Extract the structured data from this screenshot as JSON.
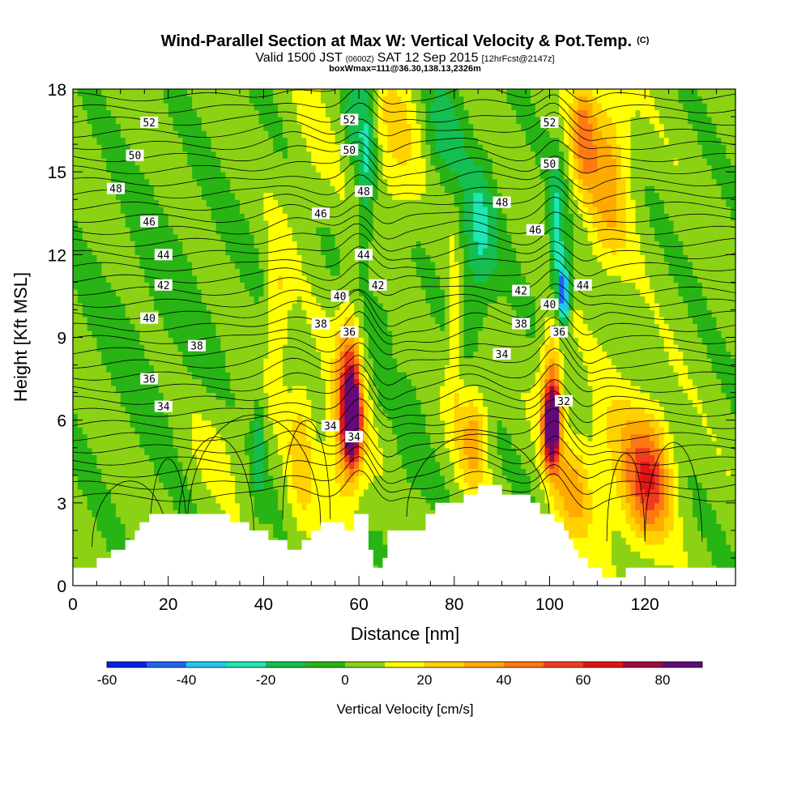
{
  "chart_data": {
    "type": "heatmap",
    "title": "Wind-Parallel Section at Max W: Vertical Velocity & Pot.Temp.",
    "title_mark": "(C)",
    "subtitle": {
      "valid": "Valid 1500 JST",
      "utc": "(0600Z)",
      "date": "SAT 12 Sep 2015",
      "forecast": "[12hrFcst@2147z]"
    },
    "annotation": "boxWmax=111@36.30,138.13,2326m",
    "xlabel": "Distance [nm]",
    "ylabel": "Height [Kft MSL]",
    "xlim": [
      0,
      139
    ],
    "ylim": [
      0,
      18
    ],
    "x_ticks": [
      0,
      20,
      40,
      60,
      80,
      100,
      120
    ],
    "y_ticks": [
      0,
      3,
      6,
      9,
      12,
      15,
      18
    ],
    "colorbar": {
      "label": "Vertical Velocity [cm/s]",
      "ticks": [
        -60,
        -40,
        -20,
        0,
        20,
        40,
        60,
        80
      ],
      "min": -60,
      "max": 90,
      "step": 10,
      "colors": [
        "#0a1ee6",
        "#1e64f0",
        "#1ec8f0",
        "#1ee6b4",
        "#14be50",
        "#28b414",
        "#8cd214",
        "#ffff00",
        "#ffd200",
        "#ffaa00",
        "#ff7814",
        "#f03c1e",
        "#e11414",
        "#a00a3c",
        "#640a78"
      ]
    },
    "terrain_nm_kft": [
      [
        0,
        0.65
      ],
      [
        5,
        0.65
      ],
      [
        5,
        1.0
      ],
      [
        8,
        1.0
      ],
      [
        8,
        1.3
      ],
      [
        11,
        1.3
      ],
      [
        11,
        1.65
      ],
      [
        13,
        1.65
      ],
      [
        13,
        2.0
      ],
      [
        14,
        2.0
      ],
      [
        14,
        2.3
      ],
      [
        16,
        2.3
      ],
      [
        16,
        2.6
      ],
      [
        33,
        2.6
      ],
      [
        33,
        2.3
      ],
      [
        37,
        2.3
      ],
      [
        37,
        2.0
      ],
      [
        41,
        2.0
      ],
      [
        41,
        1.65
      ],
      [
        45,
        1.65
      ],
      [
        45,
        1.3
      ],
      [
        48,
        1.3
      ],
      [
        48,
        1.65
      ],
      [
        50,
        1.65
      ],
      [
        50,
        2.0
      ],
      [
        52,
        2.0
      ],
      [
        52,
        2.3
      ],
      [
        57,
        2.3
      ],
      [
        57,
        2.0
      ],
      [
        59,
        2.0
      ],
      [
        59,
        2.6
      ],
      [
        62,
        2.6
      ],
      [
        62,
        1.3
      ],
      [
        63,
        1.3
      ],
      [
        63,
        0.65
      ],
      [
        65,
        0.65
      ],
      [
        65,
        1.0
      ],
      [
        66,
        1.0
      ],
      [
        66,
        2.0
      ],
      [
        74,
        2.0
      ],
      [
        74,
        2.6
      ],
      [
        76,
        2.6
      ],
      [
        76,
        3.0
      ],
      [
        82,
        3.0
      ],
      [
        82,
        3.3
      ],
      [
        85,
        3.3
      ],
      [
        85,
        3.65
      ],
      [
        90,
        3.65
      ],
      [
        90,
        3.3
      ],
      [
        96,
        3.3
      ],
      [
        96,
        3.0
      ],
      [
        98,
        3.0
      ],
      [
        98,
        2.6
      ],
      [
        101,
        2.6
      ],
      [
        101,
        2.3
      ],
      [
        103,
        2.3
      ],
      [
        103,
        2.0
      ],
      [
        104,
        2.0
      ],
      [
        104,
        1.65
      ],
      [
        105,
        1.65
      ],
      [
        105,
        1.3
      ],
      [
        106,
        1.3
      ],
      [
        106,
        1.0
      ],
      [
        108,
        1.0
      ],
      [
        108,
        0.65
      ],
      [
        111,
        0.65
      ],
      [
        111,
        0.3
      ],
      [
        116,
        0.3
      ],
      [
        116,
        0.65
      ],
      [
        139,
        0.65
      ]
    ],
    "w_features": [
      {
        "x": 58.5,
        "z": 6.0,
        "sx": 1.6,
        "sz": 1.4,
        "a": 95
      },
      {
        "x": 58.0,
        "z": 7.5,
        "sx": 2.4,
        "sz": 2.6,
        "a": 40
      },
      {
        "x": 57.0,
        "z": 5.0,
        "sx": 4.5,
        "sz": 3.0,
        "a": 25
      },
      {
        "x": 100.5,
        "z": 5.8,
        "sx": 1.5,
        "sz": 1.3,
        "a": 90
      },
      {
        "x": 100.5,
        "z": 7.0,
        "sx": 2.4,
        "sz": 2.6,
        "a": 40
      },
      {
        "x": 105.0,
        "z": 3.5,
        "sx": 4.0,
        "sz": 2.0,
        "a": 25
      },
      {
        "x": 121.0,
        "z": 3.8,
        "sx": 4.5,
        "sz": 2.2,
        "a": 42
      },
      {
        "x": 116.0,
        "z": 4.5,
        "sx": 7.5,
        "sz": 2.8,
        "a": 20
      },
      {
        "x": 112.0,
        "z": 15.0,
        "sx": 5.0,
        "sz": 3.5,
        "a": 30
      },
      {
        "x": 107.0,
        "z": 16.5,
        "sx": 2.5,
        "sz": 2.0,
        "a": 30
      },
      {
        "x": 84.0,
        "z": 5.5,
        "sx": 3.0,
        "sz": 2.0,
        "a": 30
      },
      {
        "x": 80.0,
        "z": 9.0,
        "sx": 1.5,
        "sz": 3.0,
        "a": 20
      },
      {
        "x": 48.0,
        "z": 5.0,
        "sx": 3.0,
        "sz": 3.0,
        "a": 20
      },
      {
        "x": 43.0,
        "z": 10.0,
        "sx": 2.5,
        "sz": 2.5,
        "a": 20
      },
      {
        "x": 67.5,
        "z": 16.0,
        "sx": 5.0,
        "sz": 3.0,
        "a": 18
      },
      {
        "x": 61.5,
        "z": 15.5,
        "sx": 2.0,
        "sz": 4.0,
        "a": -25
      },
      {
        "x": 58.5,
        "z": 17.0,
        "sx": 1.5,
        "sz": 1.6,
        "a": -15
      },
      {
        "x": 103.0,
        "z": 10.5,
        "sx": 1.2,
        "sz": 1.2,
        "a": -55
      },
      {
        "x": 101.5,
        "z": 12.5,
        "sx": 1.8,
        "sz": 2.5,
        "a": -30
      },
      {
        "x": 85.0,
        "z": 12.5,
        "sx": 4.0,
        "sz": 3.0,
        "a": -25
      },
      {
        "x": 78.0,
        "z": 16.5,
        "sx": 4.0,
        "sz": 2.0,
        "a": -18
      },
      {
        "x": 39.0,
        "z": 5.0,
        "sx": 1.2,
        "sz": 2.0,
        "a": -20
      },
      {
        "x": 65.0,
        "z": 9.0,
        "sx": 2.0,
        "sz": 3.0,
        "a": -8
      },
      {
        "x": 71.0,
        "z": 5.5,
        "sx": 3.0,
        "sz": 2.5,
        "a": -8
      },
      {
        "x": 18.0,
        "z": 10.0,
        "sx": 15.0,
        "sz": 5.0,
        "a": -7
      },
      {
        "x": 30.0,
        "z": 5.0,
        "sx": 6.0,
        "sz": 2.0,
        "a": 8
      },
      {
        "x": 50.0,
        "z": 16.0,
        "sx": 5.0,
        "sz": 3.0,
        "a": 6
      }
    ],
    "isentrope_labels": [
      {
        "x": 16,
        "z": 16.8,
        "text": "52"
      },
      {
        "x": 13,
        "z": 15.6,
        "text": "50"
      },
      {
        "x": 9,
        "z": 14.4,
        "text": "48"
      },
      {
        "x": 16,
        "z": 13.2,
        "text": "46"
      },
      {
        "x": 19,
        "z": 12.0,
        "text": "44"
      },
      {
        "x": 19,
        "z": 10.9,
        "text": "42"
      },
      {
        "x": 16,
        "z": 9.7,
        "text": "40"
      },
      {
        "x": 26,
        "z": 8.7,
        "text": "38"
      },
      {
        "x": 16,
        "z": 7.5,
        "text": "36"
      },
      {
        "x": 19,
        "z": 6.5,
        "text": "34"
      },
      {
        "x": 58,
        "z": 16.9,
        "text": "52"
      },
      {
        "x": 58,
        "z": 15.8,
        "text": "50"
      },
      {
        "x": 61,
        "z": 14.3,
        "text": "48"
      },
      {
        "x": 52,
        "z": 13.5,
        "text": "46"
      },
      {
        "x": 61,
        "z": 12.0,
        "text": "44"
      },
      {
        "x": 64,
        "z": 10.9,
        "text": "42"
      },
      {
        "x": 56,
        "z": 10.5,
        "text": "40"
      },
      {
        "x": 52,
        "z": 9.5,
        "text": "38"
      },
      {
        "x": 58,
        "z": 9.2,
        "text": "36"
      },
      {
        "x": 54,
        "z": 5.8,
        "text": "34"
      },
      {
        "x": 59,
        "z": 5.4,
        "text": "34"
      },
      {
        "x": 100,
        "z": 16.8,
        "text": "52"
      },
      {
        "x": 100,
        "z": 15.3,
        "text": "50"
      },
      {
        "x": 90,
        "z": 13.9,
        "text": "48"
      },
      {
        "x": 97,
        "z": 12.9,
        "text": "46"
      },
      {
        "x": 107,
        "z": 10.9,
        "text": "44"
      },
      {
        "x": 94,
        "z": 10.7,
        "text": "42"
      },
      {
        "x": 100,
        "z": 10.2,
        "text": "40"
      },
      {
        "x": 94,
        "z": 9.5,
        "text": "38"
      },
      {
        "x": 102,
        "z": 9.2,
        "text": "36"
      },
      {
        "x": 90,
        "z": 8.4,
        "text": "34"
      },
      {
        "x": 103,
        "z": 6.7,
        "text": "32"
      }
    ]
  }
}
